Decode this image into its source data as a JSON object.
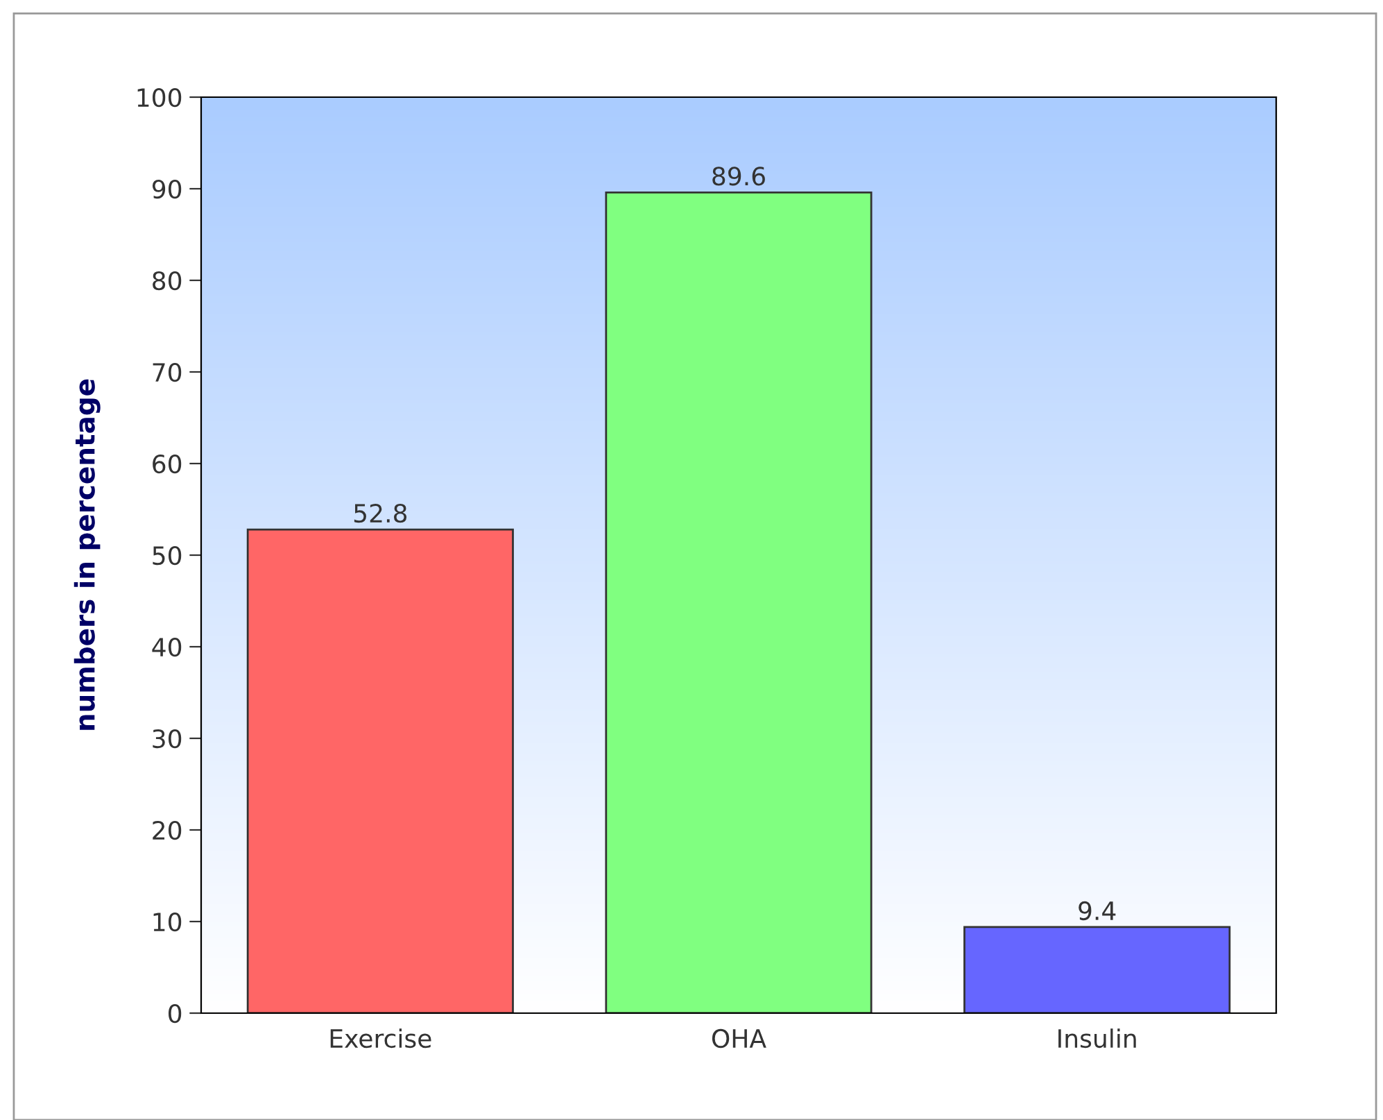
{
  "chart_data": {
    "type": "bar",
    "ylabel": "numbers in percentage",
    "categories": [
      "Exercise",
      "OHA",
      "Insulin"
    ],
    "values": [
      52.8,
      89.6,
      9.4
    ],
    "colors": [
      "#ff6666",
      "#80ff80",
      "#6666ff"
    ],
    "ylim": [
      0,
      100
    ],
    "yticks": [
      0,
      10,
      20,
      30,
      40,
      50,
      60,
      70,
      80,
      90,
      100
    ],
    "data_labels": true,
    "grid": false,
    "legend": false
  }
}
